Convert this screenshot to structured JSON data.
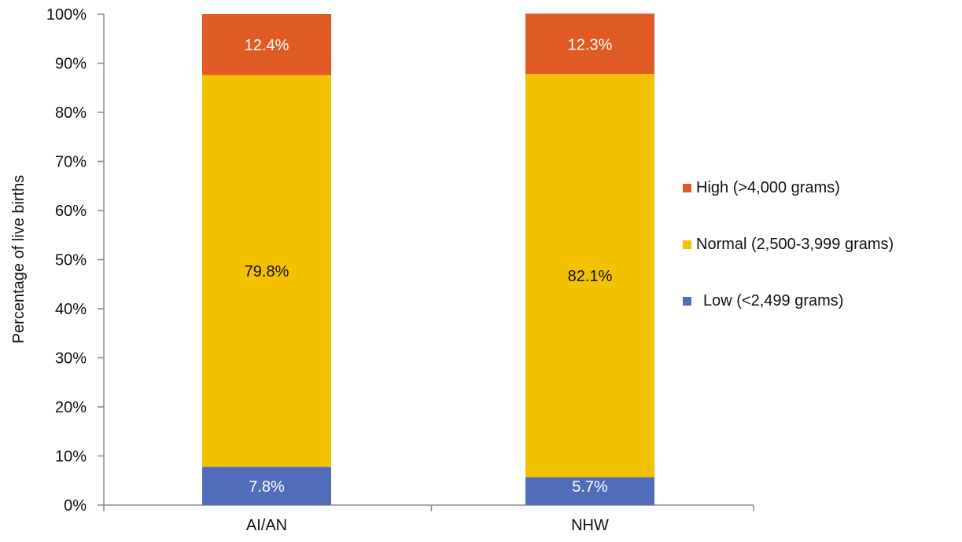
{
  "chart_data": {
    "type": "bar",
    "stacked": true,
    "categories": [
      "AI/AN",
      "NHW"
    ],
    "series": [
      {
        "name": "Low (<2,499 grams)",
        "values": [
          7.8,
          5.7
        ],
        "labels": [
          "7.8%",
          "5.7%"
        ],
        "color": "#4f6db8",
        "label_color": "#ffffff"
      },
      {
        "name": "Normal (2,500-3,999 grams)",
        "values": [
          79.8,
          82.1
        ],
        "labels": [
          "79.8%",
          "82.1%"
        ],
        "color": "#f2c100",
        "label_color": "#111111"
      },
      {
        "name": "High (>4,000 grams)",
        "values": [
          12.4,
          12.3
        ],
        "labels": [
          "12.4%",
          "12.3%"
        ],
        "color": "#e05a25",
        "label_color": "#ffffff"
      }
    ],
    "title": "",
    "xlabel": "",
    "ylabel": "Percentage of live births",
    "ylim": [
      0,
      100
    ],
    "y_ticks": [
      "0%",
      "10%",
      "20%",
      "30%",
      "40%",
      "50%",
      "60%",
      "70%",
      "80%",
      "90%",
      "100%"
    ],
    "grid": false,
    "legend_position": "right",
    "legend_order": [
      "High (>4,000 grams)",
      "Normal (2,500-3,999 grams)",
      "Low (<2,499 grams)"
    ]
  }
}
